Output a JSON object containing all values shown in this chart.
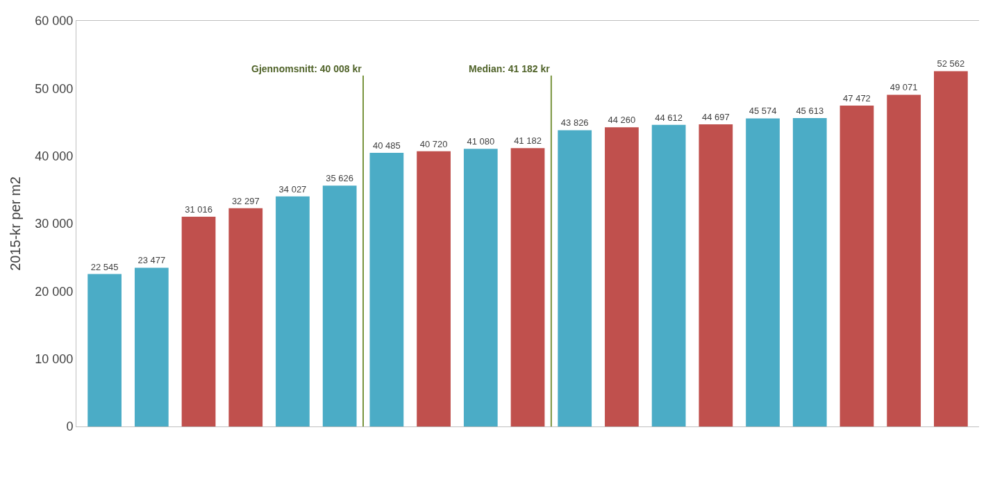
{
  "chart_data": {
    "type": "bar",
    "ylabel": "2015-kr per m2",
    "categories": [
      null,
      null,
      null,
      null,
      null,
      null,
      null,
      null,
      null,
      null,
      null,
      null,
      null,
      null,
      null,
      null,
      null,
      null,
      null
    ],
    "values": [
      22545,
      23477,
      31016,
      32297,
      34027,
      35626,
      40485,
      40720,
      41080,
      41182,
      43826,
      44260,
      44612,
      44697,
      45574,
      45613,
      47472,
      49071,
      52562
    ],
    "colors": [
      "#4bacc6",
      "#4bacc6",
      "#c0504d",
      "#c0504d",
      "#4bacc6",
      "#4bacc6",
      "#4bacc6",
      "#c0504d",
      "#4bacc6",
      "#c0504d",
      "#4bacc6",
      "#c0504d",
      "#4bacc6",
      "#c0504d",
      "#4bacc6",
      "#4bacc6",
      "#c0504d",
      "#c0504d",
      "#c0504d"
    ],
    "ylim": [
      0,
      60000
    ],
    "yticks": [
      {
        "value": 0,
        "label": "0"
      },
      {
        "value": 10000,
        "label": "10 000"
      },
      {
        "value": 20000,
        "label": "20 000"
      },
      {
        "value": 30000,
        "label": "30 000"
      },
      {
        "value": 40000,
        "label": "40 000"
      },
      {
        "value": 50000,
        "label": "50 000"
      },
      {
        "value": 60000,
        "label": "60 000"
      }
    ],
    "annotations": [
      "Gjennomsnitt: 40 008 kr",
      "Median: 41 182 kr"
    ],
    "data_labels": true,
    "legend": false,
    "tick_labels": "y"
  }
}
